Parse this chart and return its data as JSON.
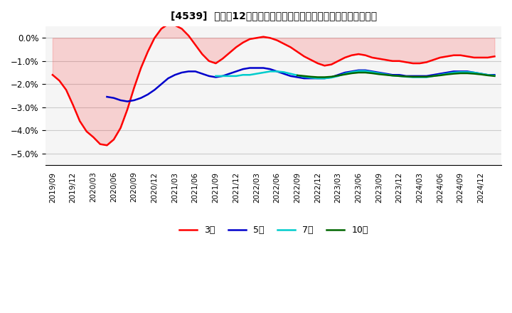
{
  "title": "[4539]  売上高12か月移動合計の対前年同期増減率の平均値の推移",
  "ylim": [
    -0.055,
    0.005
  ],
  "yticks": [
    0.0,
    -0.01,
    -0.02,
    -0.03,
    -0.04,
    -0.05
  ],
  "ytick_labels": [
    "0.0%",
    "-1.0%",
    "-2.0%",
    "-3.0%",
    "-4.0%",
    "-5.0%"
  ],
  "background_color": "#ffffff",
  "grid_color": "#cccccc",
  "series": {
    "3year": {
      "color": "#ff0000",
      "label": "3年",
      "values": [
        -0.016,
        -0.0185,
        -0.0225,
        -0.029,
        -0.036,
        -0.0405,
        -0.043,
        -0.046,
        -0.0465,
        -0.044,
        -0.039,
        -0.031,
        -0.0215,
        -0.013,
        -0.006,
        0.0,
        0.004,
        0.006,
        0.0055,
        0.004,
        0.001,
        -0.003,
        -0.007,
        -0.01,
        -0.011,
        -0.009,
        -0.0065,
        -0.004,
        -0.002,
        -0.0005,
        0.0,
        0.0005,
        0.0,
        -0.001,
        -0.0025,
        -0.004,
        -0.006,
        -0.008,
        -0.0095,
        -0.011,
        -0.012,
        -0.0115,
        -0.01,
        -0.0085,
        -0.0075,
        -0.007,
        -0.0075,
        -0.0085,
        -0.009,
        -0.0095,
        -0.01,
        -0.01,
        -0.0105,
        -0.011,
        -0.011,
        -0.0105,
        -0.0095,
        -0.0085,
        -0.008,
        -0.0075,
        -0.0075,
        -0.008,
        -0.0085,
        -0.0085,
        -0.0085,
        -0.008
      ]
    },
    "5year": {
      "color": "#0000cc",
      "label": "5年",
      "values": [
        null,
        null,
        null,
        null,
        null,
        null,
        null,
        null,
        -0.0255,
        -0.026,
        -0.027,
        -0.0275,
        -0.027,
        -0.026,
        -0.0245,
        -0.0225,
        -0.02,
        -0.0175,
        -0.016,
        -0.015,
        -0.0145,
        -0.0145,
        -0.0155,
        -0.0165,
        -0.017,
        -0.0165,
        -0.0155,
        -0.0145,
        -0.0135,
        -0.013,
        -0.013,
        -0.013,
        -0.0135,
        -0.0145,
        -0.0155,
        -0.0165,
        -0.017,
        -0.0175,
        -0.0175,
        -0.0175,
        -0.0175,
        -0.017,
        -0.016,
        -0.015,
        -0.0145,
        -0.014,
        -0.014,
        -0.0145,
        -0.015,
        -0.0155,
        -0.016,
        -0.016,
        -0.0165,
        -0.0165,
        -0.0165,
        -0.0165,
        -0.016,
        -0.0155,
        -0.015,
        -0.0145,
        -0.0145,
        -0.0145,
        -0.015,
        -0.0155,
        -0.016,
        -0.016
      ]
    },
    "7year": {
      "color": "#00cccc",
      "label": "7年",
      "values": [
        null,
        null,
        null,
        null,
        null,
        null,
        null,
        null,
        null,
        null,
        null,
        null,
        null,
        null,
        null,
        null,
        null,
        null,
        null,
        null,
        null,
        null,
        null,
        null,
        -0.0165,
        -0.0165,
        -0.0165,
        -0.0165,
        -0.016,
        -0.016,
        -0.0155,
        -0.015,
        -0.0145,
        -0.0145,
        -0.0148,
        -0.0155,
        -0.0162,
        -0.0168,
        -0.0172,
        -0.0175,
        -0.0175,
        -0.0172,
        -0.0165,
        -0.0155,
        -0.0148,
        -0.0143,
        -0.0143,
        -0.0148,
        -0.0153,
        -0.0158,
        -0.0163,
        -0.0165,
        -0.0168,
        -0.017,
        -0.017,
        -0.017,
        -0.0165,
        -0.016,
        -0.0155,
        -0.015,
        -0.0148,
        -0.0148,
        -0.015,
        -0.0155,
        -0.016,
        -0.0163
      ]
    },
    "10year": {
      "color": "#006600",
      "label": "10年",
      "values": [
        null,
        null,
        null,
        null,
        null,
        null,
        null,
        null,
        null,
        null,
        null,
        null,
        null,
        null,
        null,
        null,
        null,
        null,
        null,
        null,
        null,
        null,
        null,
        null,
        null,
        null,
        null,
        null,
        null,
        null,
        null,
        null,
        null,
        null,
        null,
        null,
        -0.0162,
        -0.0165,
        -0.0168,
        -0.017,
        -0.017,
        -0.0168,
        -0.0163,
        -0.0158,
        -0.0153,
        -0.015,
        -0.015,
        -0.0153,
        -0.0157,
        -0.016,
        -0.0163,
        -0.0165,
        -0.0167,
        -0.0168,
        -0.0168,
        -0.0168,
        -0.0165,
        -0.0162,
        -0.0158,
        -0.0155,
        -0.0153,
        -0.0153,
        -0.0155,
        -0.0158,
        -0.0162,
        -0.0165
      ]
    }
  },
  "x_labels": [
    "2019/09",
    "2019/12",
    "2020/03",
    "2020/06",
    "2020/09",
    "2020/12",
    "2021/03",
    "2021/06",
    "2021/09",
    "2021/12",
    "2022/03",
    "2022/06",
    "2022/09",
    "2022/12",
    "2023/03",
    "2023/06",
    "2023/09",
    "2023/12",
    "2024/03",
    "2024/06",
    "2024/09",
    "2024/12"
  ]
}
